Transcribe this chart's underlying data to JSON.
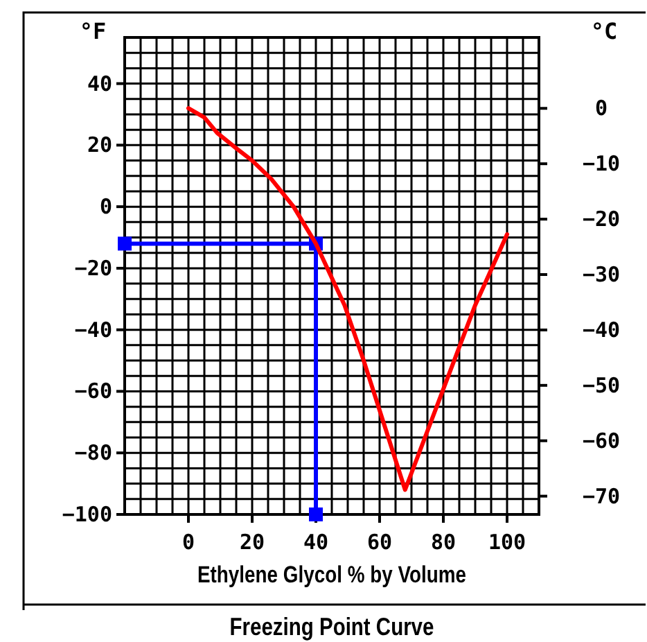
{
  "chart_data": {
    "type": "line",
    "title": "Freezing Point Curve",
    "xlabel": "Ethylene Glycol % by Volume",
    "ylabel": "°F",
    "y2label": "°C",
    "xlim": [
      -20,
      110
    ],
    "ylim": [
      -100,
      55
    ],
    "y2lim": [
      -73.3,
      12.8
    ],
    "xticks": [
      {
        "value": -20,
        "label": null
      },
      {
        "value": -15,
        "label": null
      },
      {
        "value": -10,
        "label": null
      },
      {
        "value": -5,
        "label": null
      },
      0,
      {
        "value": 5,
        "label": null
      },
      {
        "value": 10,
        "label": null
      },
      {
        "value": 15,
        "label": null
      },
      20,
      {
        "value": 25,
        "label": null
      },
      {
        "value": 30,
        "label": null
      },
      {
        "value": 35,
        "label": null
      },
      40,
      {
        "value": 45,
        "label": null
      },
      {
        "value": 50,
        "label": null
      },
      {
        "value": 55,
        "label": null
      },
      60,
      {
        "value": 65,
        "label": null
      },
      {
        "value": 70,
        "label": null
      },
      {
        "value": 75,
        "label": null
      },
      80,
      {
        "value": 85,
        "label": null
      },
      {
        "value": 90,
        "label": null
      },
      {
        "value": 95,
        "label": null
      },
      100,
      {
        "value": 105,
        "label": null
      },
      {
        "value": 110,
        "label": null
      }
    ],
    "yticks": [
      -100,
      {
        "value": -95,
        "label": null
      },
      {
        "value": -90,
        "label": null
      },
      {
        "value": -85,
        "label": null
      },
      -80,
      {
        "value": -75,
        "label": null
      },
      {
        "value": -70,
        "label": null
      },
      {
        "value": -65,
        "label": null
      },
      -60,
      {
        "value": -55,
        "label": null
      },
      {
        "value": -50,
        "label": null
      },
      {
        "value": -45,
        "label": null
      },
      -40,
      {
        "value": -35,
        "label": null
      },
      {
        "value": -30,
        "label": null
      },
      {
        "value": -25,
        "label": null
      },
      -20,
      {
        "value": -15,
        "label": null
      },
      {
        "value": -10,
        "label": null
      },
      {
        "value": -5,
        "label": null
      },
      0,
      {
        "value": 5,
        "label": null
      },
      {
        "value": 10,
        "label": null
      },
      {
        "value": 15,
        "label": null
      },
      20,
      {
        "value": 25,
        "label": null
      },
      {
        "value": 30,
        "label": null
      },
      {
        "value": 35,
        "label": null
      },
      40,
      {
        "value": 45,
        "label": null
      },
      {
        "value": 50,
        "label": null
      },
      {
        "value": 55,
        "label": null
      }
    ],
    "y2ticks": [
      0,
      -10,
      -20,
      -30,
      -40,
      -50,
      -60,
      -70
    ],
    "grid": true,
    "series": [
      {
        "color": "#ff0000",
        "x": [
          0,
          5,
          9,
          15,
          20,
          26,
          33,
          40,
          49,
          55,
          68,
          90,
          100
        ],
        "values": [
          32,
          29,
          24,
          19,
          15,
          9,
          0,
          -12,
          -32,
          -50,
          -92,
          -32,
          -9
        ],
        "marker": "none",
        "line_style": "solid"
      },
      {
        "color": "#0000ff",
        "x": [
          -20,
          40,
          40
        ],
        "values": [
          -12,
          -12,
          -100
        ],
        "marker": "square",
        "line_style": "solid"
      }
    ]
  }
}
